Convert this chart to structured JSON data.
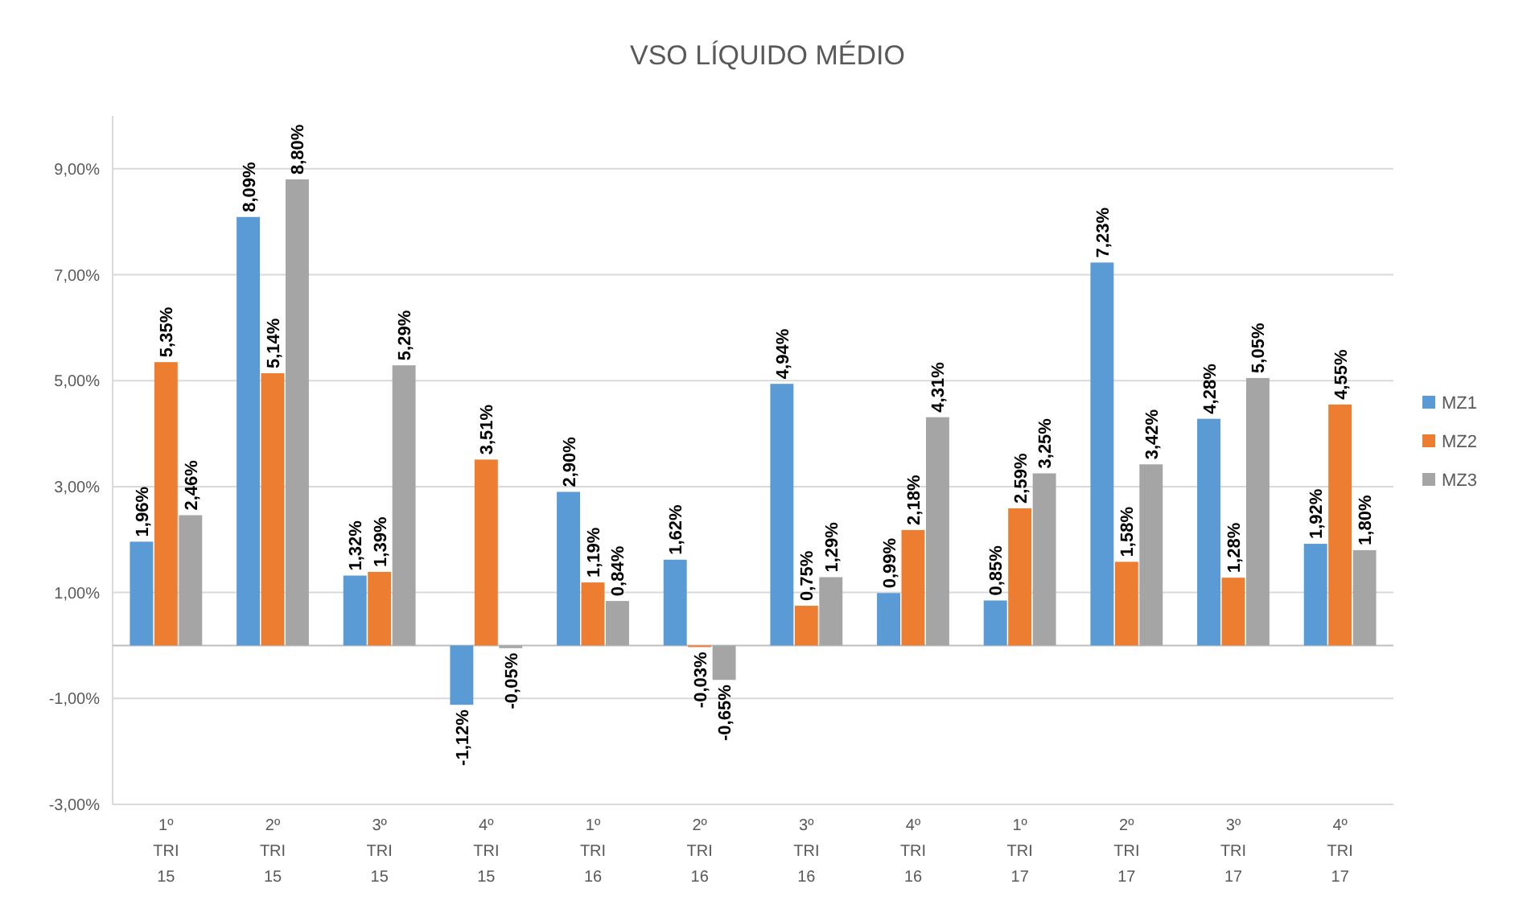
{
  "chart_data": {
    "type": "bar",
    "title": "VSO LÍQUIDO MÉDIO",
    "categories": [
      "1º TRI 15",
      "2º TRI 15",
      "3º TRI 15",
      "4º TRI 15",
      "1º TRI 16",
      "2º TRI 16",
      "3º TRI 16",
      "4º TRI 16",
      "1º TRI 17",
      "2º TRI 17",
      "3º TRI 17",
      "4º TRI 17"
    ],
    "series": [
      {
        "name": "MZ1",
        "color": "#5b9bd5",
        "values": [
          1.96,
          8.09,
          1.32,
          -1.12,
          2.9,
          1.62,
          4.94,
          0.99,
          0.85,
          7.23,
          4.28,
          1.92
        ],
        "value_labels": [
          "1,96%",
          "8,09%",
          "1,32%",
          "-1,12%",
          "2,90%",
          "1,62%",
          "4,94%",
          "0,99%",
          "0,85%",
          "7,23%",
          "4,28%",
          "1,92%"
        ]
      },
      {
        "name": "MZ2",
        "color": "#ed7d31",
        "values": [
          5.35,
          5.14,
          1.39,
          3.51,
          1.19,
          -0.03,
          0.75,
          2.18,
          2.59,
          1.58,
          1.28,
          4.55
        ],
        "value_labels": [
          "5,35%",
          "5,14%",
          "1,39%",
          "3,51%",
          "1,19%",
          "-0,03%",
          "0,75%",
          "2,18%",
          "2,59%",
          "1,58%",
          "1,28%",
          "4,55%"
        ]
      },
      {
        "name": "MZ3",
        "color": "#a5a5a5",
        "values": [
          2.46,
          8.8,
          5.29,
          -0.05,
          0.84,
          -0.65,
          1.29,
          4.31,
          3.25,
          3.42,
          5.05,
          1.8
        ],
        "value_labels": [
          "2,46%",
          "8,80%",
          "5,29%",
          "-0,05%",
          "0,84%",
          "-0,65%",
          "1,29%",
          "4,31%",
          "3,25%",
          "3,42%",
          "5,05%",
          "1,80%"
        ]
      }
    ],
    "ylim": [
      -3,
      10
    ],
    "yticks": [
      {
        "value": -3,
        "label": "-3,00%"
      },
      {
        "value": -1,
        "label": "-1,00%"
      },
      {
        "value": 1,
        "label": "1,00%"
      },
      {
        "value": 3,
        "label": "3,00%"
      },
      {
        "value": 5,
        "label": "5,00%"
      },
      {
        "value": 7,
        "label": "7,00%"
      },
      {
        "value": 9,
        "label": "9,00%"
      }
    ],
    "grid": "y",
    "legend": "right"
  }
}
